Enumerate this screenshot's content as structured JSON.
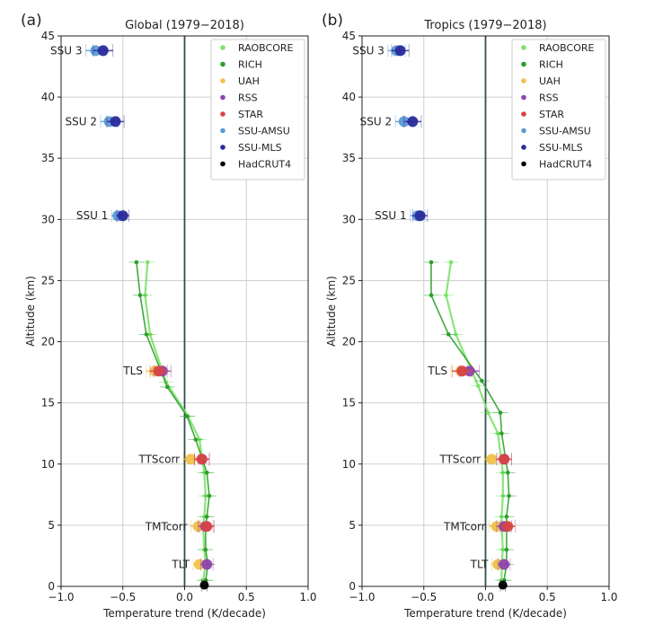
{
  "chart_data": [
    {
      "type": "line",
      "panel_label": "(a)",
      "title": "Global (1979−2018)",
      "xlabel": "Temperature trend (K/decade)",
      "ylabel": "Altitude (km)",
      "xlim": [
        -1.0,
        1.0
      ],
      "ylim": [
        0,
        45
      ],
      "xticks": [
        "−1.0",
        "−0.5",
        "0.0",
        "0.5",
        "1.0"
      ],
      "yticks": [
        "0",
        "5",
        "10",
        "15",
        "20",
        "25",
        "30",
        "35",
        "40",
        "45"
      ],
      "grid": true,
      "legend_position": "top-right",
      "legend": [
        "RAOBCORE",
        "RICH",
        "UAH",
        "RSS",
        "STAR",
        "SSU-AMSU",
        "SSU-MLS",
        "HadCRUT4"
      ],
      "profiles": [
        {
          "name": "RAOBCORE",
          "points": [
            [
              0.15,
              0.5
            ],
            [
              0.17,
              1.8
            ],
            [
              0.16,
              3.0
            ],
            [
              0.15,
              4.9
            ],
            [
              0.16,
              5.7
            ],
            [
              0.17,
              7.4
            ],
            [
              0.16,
              9.3
            ],
            [
              0.12,
              12.0
            ],
            [
              0.03,
              13.9
            ],
            [
              -0.15,
              16.7
            ],
            [
              -0.28,
              20.6
            ],
            [
              -0.32,
              23.8
            ],
            [
              -0.3,
              26.5
            ]
          ]
        },
        {
          "name": "RICH",
          "points": [
            [
              0.17,
              0.5
            ],
            [
              0.19,
              1.8
            ],
            [
              0.17,
              3.0
            ],
            [
              0.17,
              4.9
            ],
            [
              0.18,
              5.7
            ],
            [
              0.2,
              7.4
            ],
            [
              0.18,
              9.3
            ],
            [
              0.09,
              12.0
            ],
            [
              0.02,
              13.9
            ],
            [
              -0.14,
              16.3
            ],
            [
              -0.31,
              20.6
            ],
            [
              -0.36,
              23.8
            ],
            [
              -0.39,
              26.5
            ]
          ]
        }
      ],
      "markers": [
        {
          "label": "SSU 3",
          "y": 43.8,
          "points": [
            {
              "series": "SSU-AMSU",
              "x": -0.72,
              "err": 0.08
            },
            {
              "series": "SSU-MLS",
              "x": -0.66,
              "err": 0.08
            }
          ]
        },
        {
          "label": "SSU 2",
          "y": 38.0,
          "points": [
            {
              "series": "SSU-AMSU",
              "x": -0.61,
              "err": 0.07
            },
            {
              "series": "SSU-MLS",
              "x": -0.56,
              "err": 0.07
            }
          ]
        },
        {
          "label": "SSU 1",
          "y": 30.3,
          "points": [
            {
              "series": "SSU-AMSU",
              "x": -0.54,
              "err": 0.05
            },
            {
              "series": "SSU-MLS",
              "x": -0.5,
              "err": 0.05
            }
          ]
        },
        {
          "label": "TLS",
          "y": 17.6,
          "points": [
            {
              "series": "UAH",
              "x": -0.24,
              "err": 0.07
            },
            {
              "series": "RSS",
              "x": -0.18,
              "err": 0.07
            },
            {
              "series": "STAR",
              "x": -0.21,
              "err": 0.07
            }
          ]
        },
        {
          "label": "TTScorr",
          "y": 10.4,
          "points": [
            {
              "series": "UAH",
              "x": 0.05,
              "err": 0.06
            },
            {
              "series": "RSS",
              "x": 0.14,
              "err": 0.06
            },
            {
              "series": "STAR",
              "x": 0.14,
              "err": 0.06
            }
          ]
        },
        {
          "label": "TMTcorr",
          "y": 4.9,
          "points": [
            {
              "series": "UAH",
              "x": 0.11,
              "err": 0.06
            },
            {
              "series": "RSS",
              "x": 0.17,
              "err": 0.06
            },
            {
              "series": "STAR",
              "x": 0.18,
              "err": 0.06
            }
          ]
        },
        {
          "label": "TLT",
          "y": 1.8,
          "points": [
            {
              "series": "UAH",
              "x": 0.12,
              "err": 0.05
            },
            {
              "series": "RSS",
              "x": 0.18,
              "err": 0.05
            }
          ]
        },
        {
          "label": "",
          "y": 0.1,
          "points": [
            {
              "series": "HadCRUT4",
              "x": 0.16,
              "err": 0.02
            }
          ]
        }
      ]
    },
    {
      "type": "line",
      "panel_label": "(b)",
      "title": "Tropics (1979−2018)",
      "xlabel": "Temperature trend (K/decade)",
      "ylabel": "Altitude (km)",
      "xlim": [
        -1.0,
        1.0
      ],
      "ylim": [
        0,
        45
      ],
      "xticks": [
        "−1.0",
        "−0.5",
        "0.0",
        "0.5",
        "1.0"
      ],
      "yticks": [
        "0",
        "5",
        "10",
        "15",
        "20",
        "25",
        "30",
        "35",
        "40",
        "45"
      ],
      "grid": true,
      "legend_position": "top-right",
      "legend": [
        "RAOBCORE",
        "RICH",
        "UAH",
        "RSS",
        "STAR",
        "SSU-AMSU",
        "SSU-MLS",
        "HadCRUT4"
      ],
      "profiles": [
        {
          "name": "RAOBCORE",
          "points": [
            [
              0.13,
              0.5
            ],
            [
              0.13,
              1.8
            ],
            [
              0.14,
              3.0
            ],
            [
              0.13,
              4.9
            ],
            [
              0.13,
              5.7
            ],
            [
              0.14,
              7.4
            ],
            [
              0.14,
              9.3
            ],
            [
              0.1,
              12.5
            ],
            [
              0.02,
              14.2
            ],
            [
              -0.06,
              16.4
            ],
            [
              -0.24,
              20.6
            ],
            [
              -0.32,
              23.8
            ],
            [
              -0.28,
              26.5
            ]
          ]
        },
        {
          "name": "RICH",
          "points": [
            [
              0.15,
              0.5
            ],
            [
              0.17,
              1.8
            ],
            [
              0.17,
              3.0
            ],
            [
              0.17,
              4.9
            ],
            [
              0.17,
              5.7
            ],
            [
              0.19,
              7.4
            ],
            [
              0.18,
              9.3
            ],
            [
              0.13,
              12.5
            ],
            [
              0.12,
              14.2
            ],
            [
              -0.03,
              16.8
            ],
            [
              -0.3,
              20.6
            ],
            [
              -0.44,
              23.8
            ],
            [
              -0.44,
              26.5
            ]
          ]
        }
      ],
      "markers": [
        {
          "label": "SSU 3",
          "y": 43.8,
          "points": [
            {
              "series": "SSU-AMSU",
              "x": -0.72,
              "err": 0.07
            },
            {
              "series": "SSU-MLS",
              "x": -0.69,
              "err": 0.07
            }
          ]
        },
        {
          "label": "SSU 2",
          "y": 38.0,
          "points": [
            {
              "series": "SSU-AMSU",
              "x": -0.66,
              "err": 0.07
            },
            {
              "series": "SSU-MLS",
              "x": -0.59,
              "err": 0.07
            }
          ]
        },
        {
          "label": "SSU 1",
          "y": 30.3,
          "points": [
            {
              "series": "SSU-AMSU",
              "x": -0.55,
              "err": 0.06
            },
            {
              "series": "SSU-MLS",
              "x": -0.53,
              "err": 0.06
            }
          ]
        },
        {
          "label": "TLS",
          "y": 17.6,
          "points": [
            {
              "series": "UAH",
              "x": -0.2,
              "err": 0.08
            },
            {
              "series": "RSS",
              "x": -0.13,
              "err": 0.08
            },
            {
              "series": "STAR",
              "x": -0.19,
              "err": 0.08
            }
          ]
        },
        {
          "label": "TTScorr",
          "y": 10.4,
          "points": [
            {
              "series": "UAH",
              "x": 0.05,
              "err": 0.06
            },
            {
              "series": "RSS",
              "x": 0.15,
              "err": 0.06
            },
            {
              "series": "STAR",
              "x": 0.15,
              "err": 0.06
            }
          ]
        },
        {
          "label": "TMTcorr",
          "y": 4.9,
          "points": [
            {
              "series": "UAH",
              "x": 0.09,
              "err": 0.06
            },
            {
              "series": "RSS",
              "x": 0.15,
              "err": 0.06
            },
            {
              "series": "STAR",
              "x": 0.18,
              "err": 0.06
            }
          ]
        },
        {
          "label": "TLT",
          "y": 1.8,
          "points": [
            {
              "series": "UAH",
              "x": 0.1,
              "err": 0.05
            },
            {
              "series": "RSS",
              "x": 0.15,
              "err": 0.05
            }
          ]
        },
        {
          "label": "",
          "y": 0.1,
          "points": [
            {
              "series": "HadCRUT4",
              "x": 0.14,
              "err": 0.02
            }
          ]
        }
      ]
    }
  ],
  "colors": {
    "RAOBCORE": "#7ee26a",
    "RICH": "#2ca02c",
    "UAH": "#f0c14b",
    "RSS": "#8e44ad",
    "STAR": "#d64545",
    "SSU-AMSU": "#5b9bd5",
    "SSU-MLS": "#2a2a9c",
    "HadCRUT4": "#000000",
    "zero_line": "#2f4f4f",
    "grid": "#cfcfcf"
  }
}
